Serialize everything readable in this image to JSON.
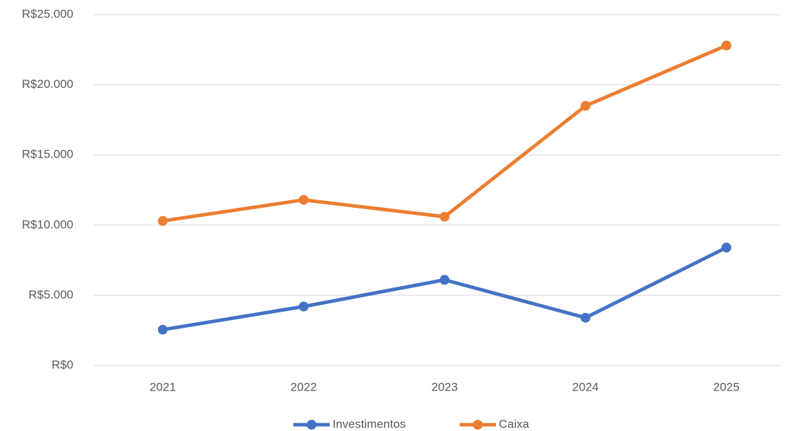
{
  "chart_data": {
    "type": "line",
    "categories": [
      "2021",
      "2022",
      "2023",
      "2024",
      "2025"
    ],
    "series": [
      {
        "name": "Investimentos",
        "color": "#4472c4",
        "values": [
          2550,
          4200,
          6100,
          3400,
          8400
        ]
      },
      {
        "name": "Caixa",
        "color": "#ed7d31",
        "values": [
          10300,
          11800,
          10600,
          18500,
          22800
        ]
      }
    ],
    "ylim": [
      0,
      25000
    ],
    "yticks": [
      {
        "value": 0,
        "label": "R$0"
      },
      {
        "value": 5000,
        "label": "R$5.000"
      },
      {
        "value": 10000,
        "label": "R$10.000"
      },
      {
        "value": 15000,
        "label": "R$15.000"
      },
      {
        "value": 20000,
        "label": "R$20.000"
      },
      {
        "value": 25000,
        "label": "R$25.000"
      }
    ],
    "grid": true,
    "legend": "bottom"
  }
}
